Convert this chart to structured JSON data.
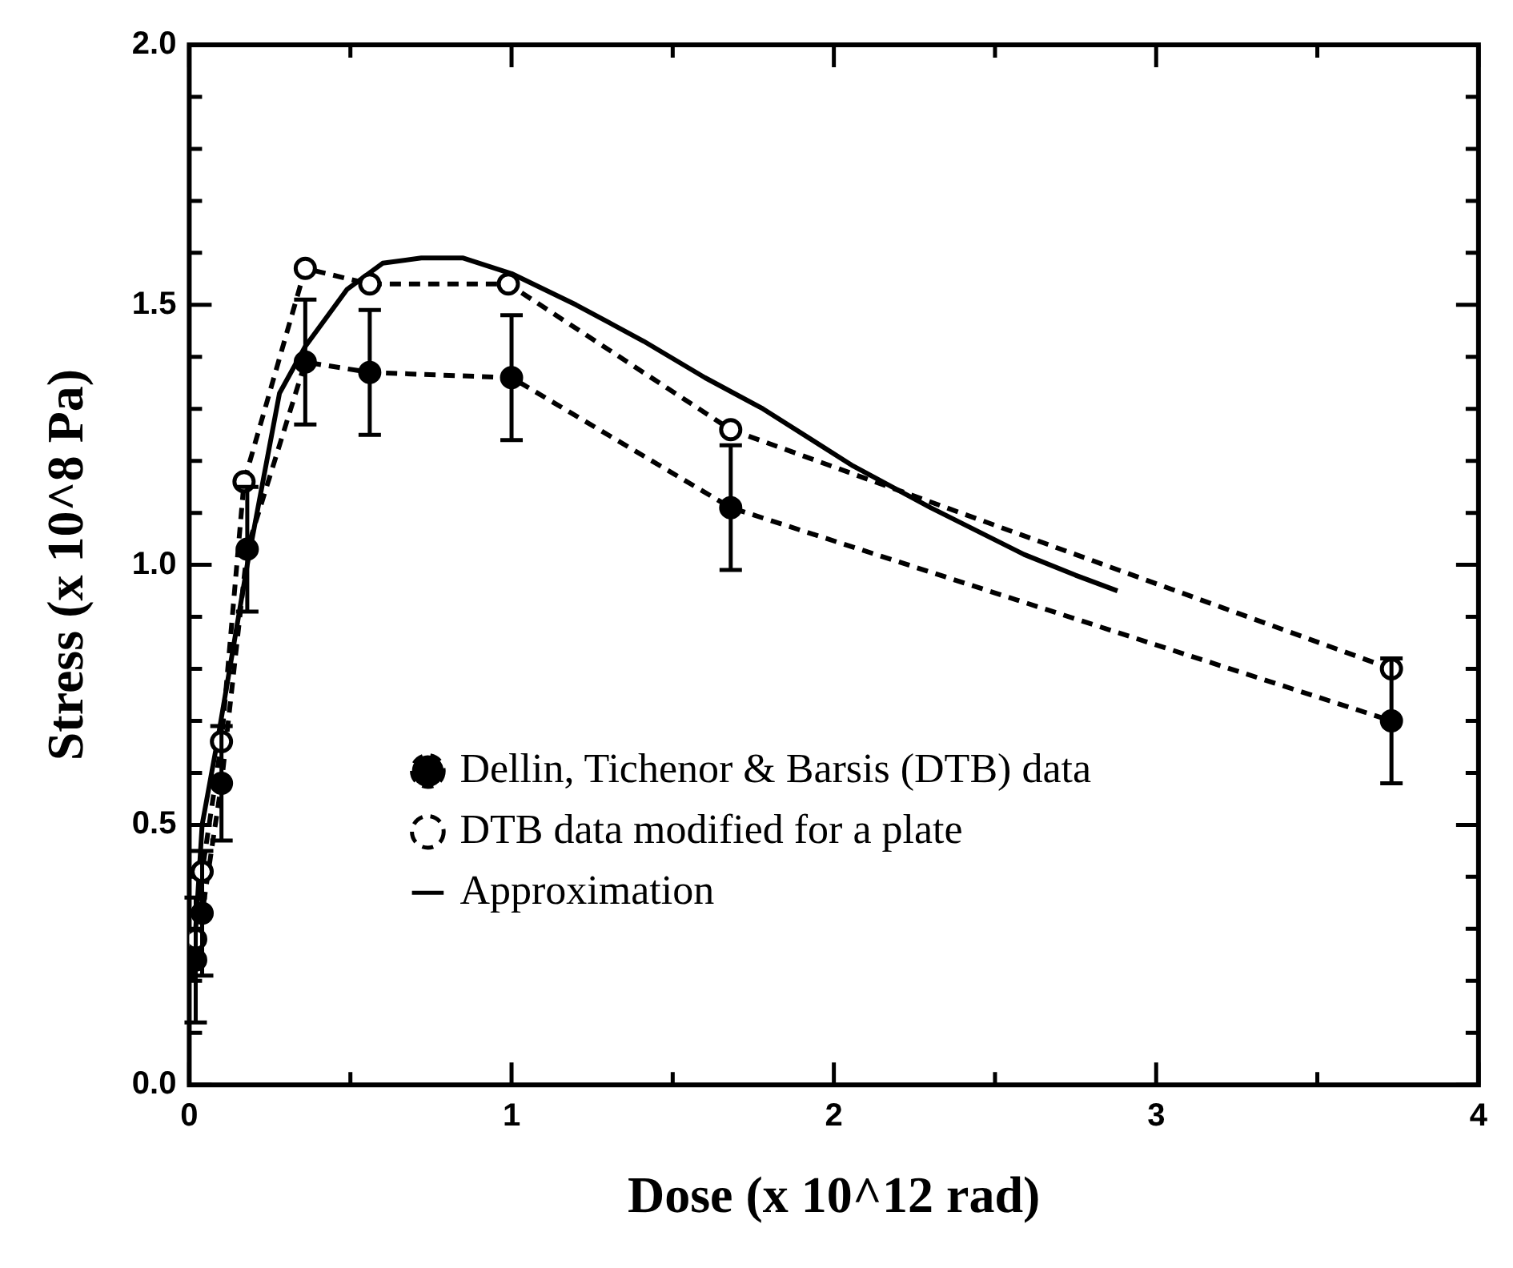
{
  "chart_data": {
    "type": "line",
    "xlabel": "Dose (x 10^12 rad)",
    "ylabel": "Stress (x 10^8 Pa)",
    "xlim": [
      0,
      4
    ],
    "ylim": [
      0,
      2
    ],
    "xticks": [
      0,
      {
        "value": 0.5,
        "label": null
      },
      1,
      {
        "value": 1.5,
        "label": null
      },
      2,
      {
        "value": 2.5,
        "label": null
      },
      3,
      {
        "value": 3.5,
        "label": null
      },
      4
    ],
    "yticks": [
      {
        "value": 0,
        "label": "0.0"
      },
      {
        "value": 0.1,
        "label": null
      },
      {
        "value": 0.2,
        "label": null
      },
      {
        "value": 0.3,
        "label": null
      },
      {
        "value": 0.4,
        "label": null
      },
      {
        "value": 0.5,
        "label": "0.5"
      },
      {
        "value": 0.6,
        "label": null
      },
      {
        "value": 0.7,
        "label": null
      },
      {
        "value": 0.8,
        "label": null
      },
      {
        "value": 0.9,
        "label": null
      },
      {
        "value": 1,
        "label": "1.0"
      },
      {
        "value": 1.1,
        "label": null
      },
      {
        "value": 1.2,
        "label": null
      },
      {
        "value": 1.3,
        "label": null
      },
      {
        "value": 1.4,
        "label": null
      },
      {
        "value": 1.5,
        "label": "1.5"
      },
      {
        "value": 1.6,
        "label": null
      },
      {
        "value": 1.7,
        "label": null
      },
      {
        "value": 1.8,
        "label": null
      },
      {
        "value": 1.9,
        "label": null
      },
      {
        "value": 2,
        "label": "2.0"
      }
    ],
    "grid": false,
    "legend": "bottom left",
    "series": [
      {
        "name": "Dellin, Tichenor & Barsis (DTB) data",
        "color": "#000000",
        "marker": "circle",
        "line_style": "dashed",
        "x": [
          0.02,
          0.04,
          0.1,
          0.18,
          0.36,
          0.56,
          1.0,
          1.68,
          3.73
        ],
        "values": [
          0.24,
          0.33,
          0.58,
          1.03,
          1.39,
          1.37,
          1.36,
          1.11,
          0.7
        ],
        "errors": [
          0.12,
          0.12,
          0.11,
          0.12,
          0.12,
          0.12,
          0.12,
          0.12,
          0.12
        ]
      },
      {
        "name": "DTB data modified for a plate",
        "color": "#000000",
        "marker": "circle",
        "line_style": "dashed",
        "x": [
          0.02,
          0.04,
          0.1,
          0.17,
          0.36,
          0.56,
          0.99,
          1.68,
          3.73
        ],
        "values": [
          0.28,
          0.41,
          0.66,
          1.16,
          1.57,
          1.54,
          1.54,
          1.26,
          0.8
        ]
      },
      {
        "name": "Approximation",
        "color": "#000000",
        "marker": "none",
        "line_style": "solid",
        "x": [
          0.01,
          0.04,
          0.09,
          0.18,
          0.28,
          0.36,
          0.49,
          0.6,
          0.72,
          0.85,
          1.0,
          1.2,
          1.41,
          1.6,
          1.78,
          2.06,
          2.3,
          2.59,
          2.75,
          2.88
        ],
        "values": [
          0.2,
          0.5,
          0.67,
          1.0,
          1.33,
          1.42,
          1.53,
          1.58,
          1.59,
          1.59,
          1.56,
          1.5,
          1.43,
          1.36,
          1.3,
          1.19,
          1.11,
          1.02,
          0.98,
          0.95
        ]
      }
    ]
  }
}
